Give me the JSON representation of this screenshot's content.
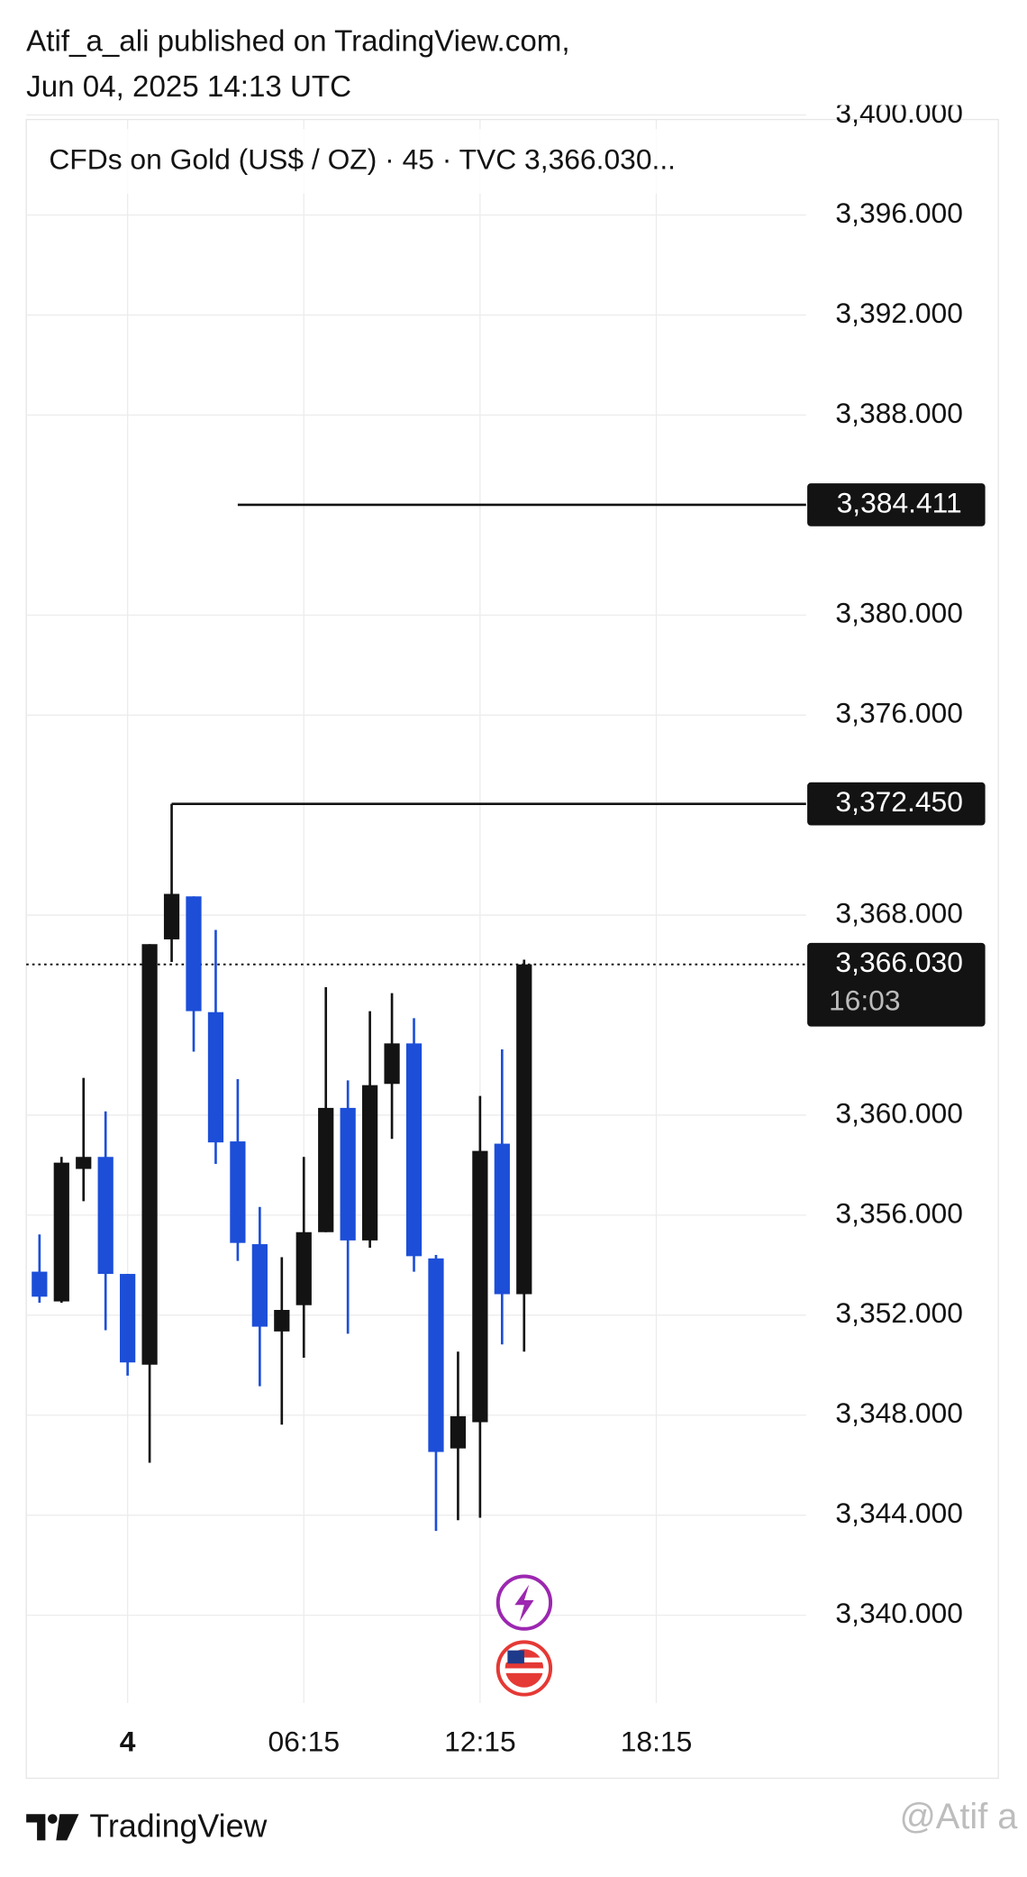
{
  "header": {
    "line1": "Atif_a_ali published on TradingView.com,",
    "line2": "Jun 04, 2025 14:13 UTC"
  },
  "chart_data": {
    "type": "candlestick",
    "title": "CFDs on Gold (US$ / OZ) · 45 · TVC  3,366.030...",
    "up_color": "#131313",
    "down_color": "#1c4ed8",
    "x": [
      0,
      1,
      2,
      3,
      4,
      5,
      6,
      7,
      8,
      9,
      10,
      11,
      12,
      13,
      14,
      15,
      16,
      17,
      18,
      19,
      20,
      21,
      22
    ],
    "open": [
      3353.74,
      3352.55,
      3357.85,
      3358.33,
      3353.65,
      3350.02,
      3367.03,
      3368.75,
      3364.12,
      3358.95,
      3354.84,
      3351.35,
      3352.4,
      3355.32,
      3360.29,
      3354.99,
      3361.25,
      3362.87,
      3354.27,
      3346.67,
      3347.72,
      3358.86,
      3352.84
    ],
    "high": [
      3355.23,
      3358.33,
      3361.49,
      3360.15,
      3353.65,
      3366.84,
      3372.45,
      3368.75,
      3367.41,
      3361.44,
      3356.33,
      3354.32,
      3358.33,
      3365.12,
      3361.39,
      3364.16,
      3364.88,
      3363.88,
      3354.41,
      3350.54,
      3360.77,
      3362.63,
      3366.22
    ],
    "low": [
      3352.5,
      3352.5,
      3356.56,
      3351.4,
      3349.58,
      3346.1,
      3366.13,
      3362.54,
      3358.05,
      3354.17,
      3349.16,
      3347.62,
      3350.3,
      3355.32,
      3351.26,
      3354.7,
      3359.05,
      3353.74,
      3343.37,
      3343.8,
      3343.9,
      3350.83,
      3350.54
    ],
    "close": [
      3352.74,
      3358.1,
      3358.33,
      3353.65,
      3350.11,
      3366.84,
      3368.85,
      3364.16,
      3358.91,
      3354.89,
      3351.54,
      3352.21,
      3355.32,
      3360.29,
      3354.99,
      3361.2,
      3362.87,
      3354.36,
      3346.53,
      3347.96,
      3358.57,
      3352.84,
      3366.03
    ],
    "xlim": [
      -0.6,
      34.8
    ],
    "xticks": [
      {
        "value": 4,
        "label": "4"
      },
      {
        "value": 12,
        "label": "06:15"
      },
      {
        "value": 20,
        "label": "12:15"
      },
      {
        "value": 28,
        "label": "18:15"
      }
    ],
    "ylim": [
      3336.49,
      3399.82
    ],
    "yticks": [
      {
        "value": 3340,
        "label": "3,340.000"
      },
      {
        "value": 3344,
        "label": "3,344.000"
      },
      {
        "value": 3348,
        "label": "3,348.000"
      },
      {
        "value": 3352,
        "label": "3,352.000"
      },
      {
        "value": 3356,
        "label": "3,356.000"
      },
      {
        "value": 3360,
        "label": "3,360.000"
      },
      {
        "value": 3368,
        "label": "3,368.000"
      },
      {
        "value": 3376,
        "label": "3,376.000"
      },
      {
        "value": 3380,
        "label": "3,380.000"
      },
      {
        "value": 3388,
        "label": "3,388.000"
      },
      {
        "value": 3392,
        "label": "3,392.000"
      },
      {
        "value": 3396,
        "label": "3,396.000"
      },
      {
        "value": 3400,
        "label": "3,400.000"
      }
    ],
    "grid": true,
    "hlines": [
      {
        "value": 3384.411,
        "label": "3,384.411",
        "start_x": 9
      },
      {
        "value": 3372.45,
        "label": "3,372.450",
        "start_x": 6
      }
    ],
    "last_price": {
      "value": 3366.03,
      "label": "3,366.030",
      "countdown": "16:03"
    }
  },
  "footer": {
    "brand": "TradingView",
    "watermark": "@Atif a"
  }
}
